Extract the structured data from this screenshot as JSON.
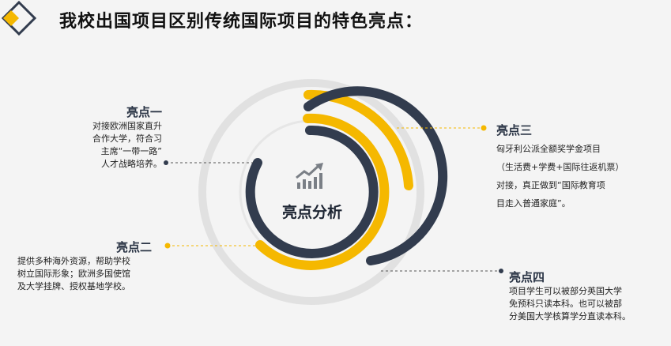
{
  "title": "我校出国项目区别传统国际项目的特色亮点：",
  "center": {
    "label": "亮点分析",
    "icon": "chart-growth-icon"
  },
  "points": [
    {
      "title": "亮点一",
      "lines": [
        "对接欧洲国家直升",
        "合作大学，符合习",
        "主席“一带一路”",
        "人才战略培养。"
      ]
    },
    {
      "title": "亮点二",
      "lines": [
        "提供多种海外资源，帮助学校",
        "树立国际形象；欧洲多国使馆",
        "及大学挂牌、授权基地学校。"
      ]
    },
    {
      "title": "亮点三",
      "lines": [
        "匈牙利公派全额奖学金项目",
        "（生活费+学费+国际往返机票）",
        "对接，真正做到“国际教育项",
        "目走入普通家庭”。"
      ]
    },
    {
      "title": "亮点四",
      "lines": [
        "项目学生可以被部分英国大学",
        "免预科只读本科。也可以被部",
        "分美国大学核算学分直读本科。"
      ]
    }
  ],
  "colors": {
    "accent": "#f5b800",
    "dark": "#323c4e",
    "track": "#e1e1e1"
  }
}
